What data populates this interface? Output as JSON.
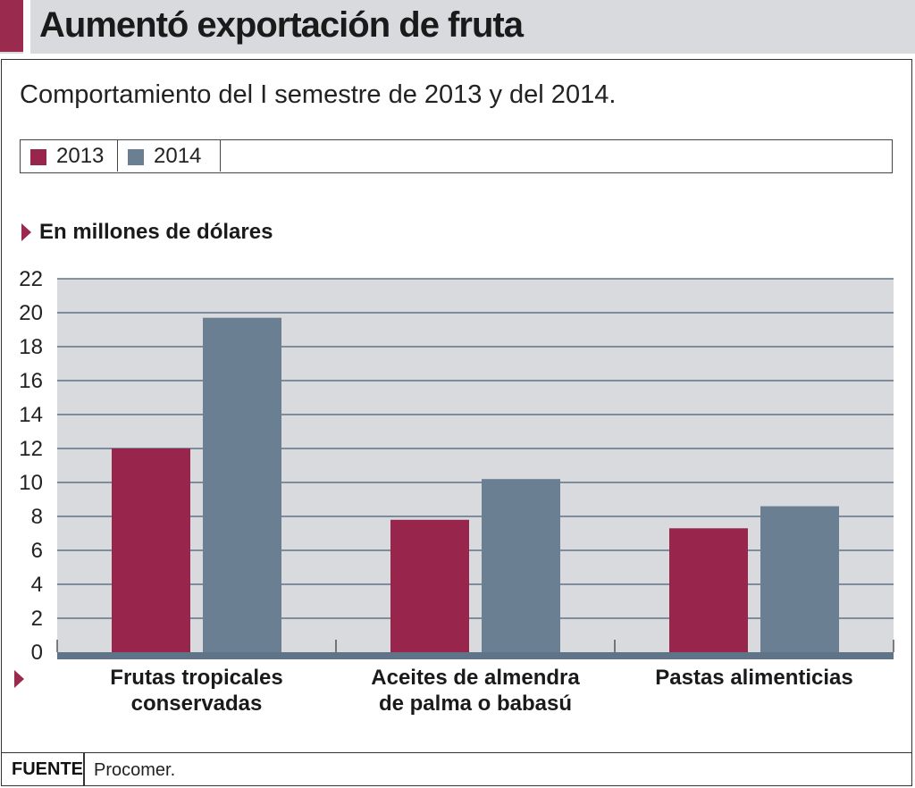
{
  "header": {
    "title": "Aumentó exportación de fruta"
  },
  "subtitle": "Comportamiento del I semestre de 2013 y del 2014.",
  "legend": [
    {
      "label": "2013",
      "color": "#98264c"
    },
    {
      "label": "2014",
      "color": "#6a7f92"
    }
  ],
  "unit_label": "En millones de dólares",
  "source": {
    "label": "FUENTE",
    "value": "Procomer."
  },
  "colors": {
    "accent": "#9a2a4e",
    "plot_background": "#d8dadd",
    "gridline": "#5d7386"
  },
  "chart_data": {
    "type": "bar",
    "title": "Aumentó exportación de fruta",
    "subtitle": "Comportamiento del I semestre de 2013 y del 2014.",
    "ylabel": "En millones de dólares",
    "xlabel": "",
    "categories": [
      [
        "Frutas tropicales",
        "conservadas"
      ],
      [
        "Aceites de almendra",
        "de palma o babasú"
      ],
      [
        "Pastas alimenticias"
      ]
    ],
    "series": [
      {
        "name": "2013",
        "values": [
          12.0,
          7.8,
          7.3
        ]
      },
      {
        "name": "2014",
        "values": [
          19.7,
          10.2,
          8.6
        ]
      }
    ],
    "ylim": [
      0,
      22
    ],
    "yticks": [
      0,
      2,
      4,
      6,
      8,
      10,
      12,
      14,
      16,
      18,
      20,
      22
    ],
    "grid": true,
    "legend_position": "top-left"
  }
}
